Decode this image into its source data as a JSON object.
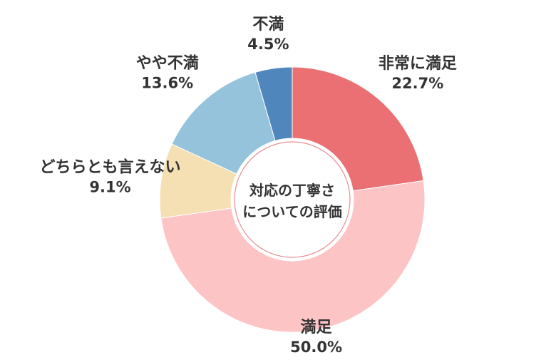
{
  "chart_data": {
    "type": "pie",
    "style": "donut",
    "center_label": [
      "対応の丁寧さ",
      "についての評価"
    ],
    "slices": [
      {
        "label": "非常に満足",
        "value_text": "22.7%",
        "value": 22.7,
        "color": "#EB7073"
      },
      {
        "label": "満足",
        "value_text": "50.0%",
        "value": 50.0,
        "color": "#FDC4C6"
      },
      {
        "label": "どちらとも言えない",
        "value_text": "9.1%",
        "value": 9.1,
        "color": "#F4E0B3"
      },
      {
        "label": "やや不満",
        "value_text": "13.6%",
        "value": 13.6,
        "color": "#94C3DB"
      },
      {
        "label": "不満",
        "value_text": "4.5%",
        "value": 4.5,
        "color": "#4F86BB"
      }
    ]
  }
}
